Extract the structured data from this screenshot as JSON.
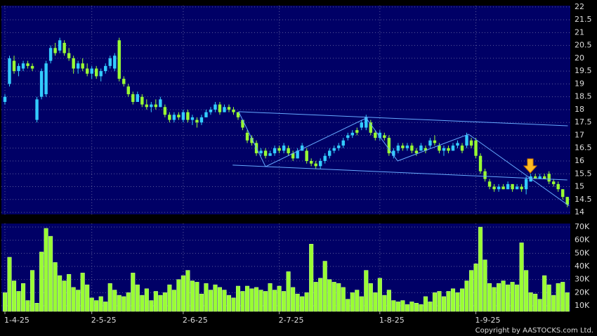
{
  "chart_data": {
    "type": "candlestick",
    "up_color": "#33ccff",
    "down_color": "#99ff33",
    "grid": true,
    "ylim": [
      13.92,
      22.05
    ],
    "yticks": [
      14,
      14.5,
      15,
      15.5,
      16,
      16.5,
      17,
      17.5,
      18,
      18.5,
      19,
      19.5,
      20,
      20.5,
      21,
      21.5,
      22
    ],
    "xticks": [
      {
        "value": 0,
        "label": "1-4-25"
      },
      {
        "value": 19,
        "label": "2-5-25"
      },
      {
        "value": 39,
        "label": "2-6-25"
      },
      {
        "value": 60,
        "label": "2-7-25"
      },
      {
        "value": 82,
        "label": "1-8-25"
      },
      {
        "value": 103,
        "label": "1-9-25"
      }
    ],
    "open": [
      18.3,
      19.0,
      19.9,
      19.5,
      19.6,
      19.8,
      19.7,
      17.6,
      18.5,
      18.6,
      19.9,
      20.4,
      20.3,
      20.6,
      20.2,
      20.0,
      19.6,
      19.8,
      19.6,
      19.4,
      19.6,
      19.3,
      19.5,
      19.7,
      19.6,
      20.7,
      19.2,
      18.9,
      18.6,
      18.3,
      18.5,
      18.2,
      18.1,
      18.2,
      18.1,
      18.1,
      17.8,
      17.6,
      17.8,
      17.6,
      17.9,
      17.6,
      17.6,
      17.5,
      17.7,
      17.9,
      18.0,
      18.2,
      17.9,
      18.1,
      18.0,
      17.9,
      17.6,
      17.1,
      16.9,
      16.7,
      16.3,
      16.4,
      16.2,
      16.3,
      16.5,
      16.4,
      16.5,
      16.3,
      16.1,
      16.4,
      16.4,
      16.0,
      15.9,
      15.8,
      16.0,
      16.2,
      16.4,
      16.5,
      16.6,
      16.9,
      17.0,
      17.2,
      17.3,
      17.3,
      17.5,
      17.1,
      16.9,
      17.0,
      16.9,
      16.2,
      16.4,
      16.6,
      16.5,
      16.6,
      16.4,
      16.4,
      16.5,
      16.6,
      16.8,
      16.6,
      16.4,
      16.5,
      16.4,
      16.6,
      16.6,
      16.6,
      16.8,
      16.8,
      16.2,
      15.6,
      15.2,
      15.0,
      14.9,
      15.0,
      14.9,
      15.1,
      14.9,
      15.0,
      14.9,
      15.2,
      15.4,
      15.3,
      15.4,
      15.5,
      15.2,
      15.1,
      14.9,
      14.6
    ],
    "high": [
      18.6,
      20.1,
      20.1,
      19.8,
      19.9,
      19.9,
      19.8,
      18.5,
      19.6,
      19.9,
      20.5,
      20.6,
      20.8,
      20.7,
      20.4,
      20.1,
      19.9,
      20.0,
      19.8,
      19.7,
      19.7,
      19.6,
      19.8,
      20.1,
      20.2,
      20.8,
      19.3,
      19.0,
      18.7,
      18.7,
      18.6,
      18.4,
      18.3,
      18.4,
      18.5,
      18.2,
      17.9,
      17.9,
      17.9,
      18.0,
      18.0,
      17.8,
      17.7,
      17.8,
      18.0,
      18.1,
      18.3,
      18.3,
      18.2,
      18.2,
      18.1,
      17.9,
      17.6,
      17.2,
      17.0,
      16.8,
      16.5,
      16.5,
      16.4,
      16.6,
      16.6,
      16.7,
      16.6,
      16.4,
      16.5,
      16.7,
      16.5,
      16.1,
      16.0,
      16.1,
      16.3,
      16.5,
      16.6,
      16.7,
      16.9,
      17.1,
      17.2,
      17.3,
      17.6,
      17.8,
      17.6,
      17.2,
      17.2,
      17.1,
      17.0,
      16.5,
      16.7,
      16.7,
      16.7,
      16.7,
      16.5,
      16.7,
      16.6,
      16.9,
      17.0,
      16.7,
      16.6,
      16.6,
      16.7,
      16.8,
      16.7,
      17.1,
      16.9,
      16.9,
      16.3,
      15.7,
      15.3,
      15.1,
      15.1,
      15.1,
      15.2,
      15.1,
      15.1,
      15.1,
      15.4,
      15.5,
      15.5,
      15.5,
      15.5,
      15.6,
      15.3,
      15.2,
      14.9,
      14.6
    ],
    "low": [
      18.2,
      18.9,
      19.4,
      19.3,
      19.5,
      19.6,
      19.5,
      17.5,
      18.4,
      18.5,
      19.8,
      20.1,
      20.2,
      20.1,
      19.9,
      19.4,
      19.4,
      19.5,
      19.3,
      19.2,
      19.2,
      19.1,
      19.4,
      19.6,
      19.5,
      19.1,
      18.9,
      18.5,
      18.2,
      18.3,
      18.1,
      18.0,
      17.9,
      18.0,
      18.1,
      17.7,
      17.5,
      17.5,
      17.6,
      17.5,
      17.5,
      17.4,
      17.3,
      17.4,
      17.7,
      17.8,
      17.9,
      17.8,
      17.9,
      17.9,
      17.8,
      17.6,
      17.2,
      16.7,
      16.6,
      16.2,
      16.2,
      16.1,
      16.2,
      16.2,
      16.3,
      16.3,
      16.2,
      16.0,
      16.1,
      16.4,
      15.9,
      15.8,
      15.7,
      15.7,
      15.9,
      16.1,
      16.3,
      16.4,
      16.5,
      16.8,
      16.9,
      17.0,
      17.2,
      17.2,
      17.0,
      16.8,
      16.8,
      16.8,
      16.2,
      16.1,
      16.3,
      16.4,
      16.4,
      16.3,
      16.2,
      16.4,
      16.3,
      16.5,
      16.6,
      16.3,
      16.2,
      16.3,
      16.4,
      16.5,
      16.3,
      16.5,
      16.5,
      16.1,
      15.5,
      15.2,
      14.9,
      14.8,
      14.8,
      14.9,
      14.9,
      14.8,
      14.9,
      14.8,
      14.7,
      15.2,
      15.3,
      15.3,
      15.3,
      15.1,
      15.0,
      14.8,
      14.5,
      14.2
    ],
    "close": [
      18.5,
      20.0,
      19.5,
      19.7,
      19.8,
      19.7,
      19.6,
      18.4,
      19.5,
      19.8,
      20.4,
      20.2,
      20.7,
      20.2,
      20.0,
      19.6,
      19.8,
      19.6,
      19.4,
      19.6,
      19.3,
      19.5,
      19.7,
      20.0,
      20.1,
      19.2,
      19.0,
      18.6,
      18.3,
      18.6,
      18.2,
      18.1,
      18.2,
      18.1,
      18.4,
      17.8,
      17.6,
      17.8,
      17.7,
      17.9,
      17.6,
      17.7,
      17.5,
      17.7,
      17.9,
      18.0,
      18.2,
      17.9,
      18.1,
      18.0,
      17.9,
      17.7,
      17.3,
      16.8,
      16.7,
      16.3,
      16.4,
      16.2,
      16.3,
      16.5,
      16.4,
      16.6,
      16.3,
      16.1,
      16.4,
      16.6,
      16.0,
      15.9,
      15.8,
      16.0,
      16.2,
      16.4,
      16.5,
      16.6,
      16.8,
      17.0,
      17.1,
      17.1,
      17.5,
      17.7,
      17.1,
      16.9,
      17.1,
      16.9,
      16.3,
      16.4,
      16.6,
      16.5,
      16.6,
      16.4,
      16.3,
      16.6,
      16.4,
      16.8,
      16.7,
      16.4,
      16.5,
      16.4,
      16.6,
      16.7,
      16.4,
      17.0,
      16.6,
      16.2,
      15.6,
      15.3,
      15.0,
      14.9,
      15.0,
      14.9,
      15.1,
      14.9,
      15.0,
      14.9,
      15.3,
      15.4,
      15.3,
      15.4,
      15.3,
      15.2,
      15.1,
      14.9,
      14.6,
      14.3
    ],
    "trend_lines": [
      {
        "x": [
          51.1,
          123.1
        ],
        "y": [
          17.92,
          17.37
        ]
      },
      {
        "x": [
          49.8,
          123.0
        ],
        "y": [
          15.84,
          15.26
        ]
      },
      {
        "x": [
          51.1,
          57.0,
          79.0,
          85.9,
          101.4,
          123.4
        ],
        "y": [
          17.92,
          15.78,
          17.67,
          16.0,
          17.04,
          14.25
        ]
      }
    ],
    "volume": {
      "color": "#99ff33",
      "ylim": [
        5700,
        72700
      ],
      "yticks": [
        {
          "value": 10000,
          "label": "10K"
        },
        {
          "value": 20000,
          "label": "20K"
        },
        {
          "value": 30000,
          "label": "30K"
        },
        {
          "value": 40000,
          "label": "40K"
        },
        {
          "value": 50000,
          "label": "50K"
        },
        {
          "value": 60000,
          "label": "60K"
        },
        {
          "value": 70000,
          "label": "70K"
        }
      ],
      "values": [
        20000,
        47000,
        29000,
        21000,
        27000,
        14000,
        37000,
        12000,
        51000,
        69000,
        63000,
        43000,
        33000,
        29000,
        34000,
        24000,
        22000,
        35000,
        26000,
        16000,
        14000,
        17000,
        13000,
        27000,
        22000,
        18000,
        17000,
        20000,
        35000,
        26000,
        18000,
        23000,
        14000,
        21000,
        18000,
        20000,
        26000,
        22000,
        30000,
        33000,
        37000,
        29000,
        28000,
        19000,
        27000,
        22000,
        26000,
        24000,
        22000,
        18000,
        16000,
        25000,
        21000,
        25000,
        23000,
        24000,
        22000,
        21000,
        27000,
        22000,
        25000,
        21000,
        36000,
        24000,
        19000,
        17000,
        20000,
        57000,
        28000,
        31000,
        44000,
        30000,
        28000,
        27000,
        24000,
        15000,
        20000,
        22000,
        17000,
        37000,
        27000,
        20000,
        31000,
        18000,
        22000,
        14000,
        13000,
        14000,
        11000,
        13000,
        12000,
        11000,
        17000,
        13000,
        20000,
        21000,
        17000,
        21000,
        23000,
        20000,
        23000,
        29000,
        37000,
        42000,
        70000,
        45000,
        27000,
        24000,
        27000,
        29000,
        26000,
        28000,
        26000,
        58000,
        37000,
        20000,
        19000,
        15000,
        33000,
        26000,
        18000,
        27000,
        28000,
        20000
      ]
    },
    "source": "Copyright by AASTOCKS.com Ltd."
  }
}
